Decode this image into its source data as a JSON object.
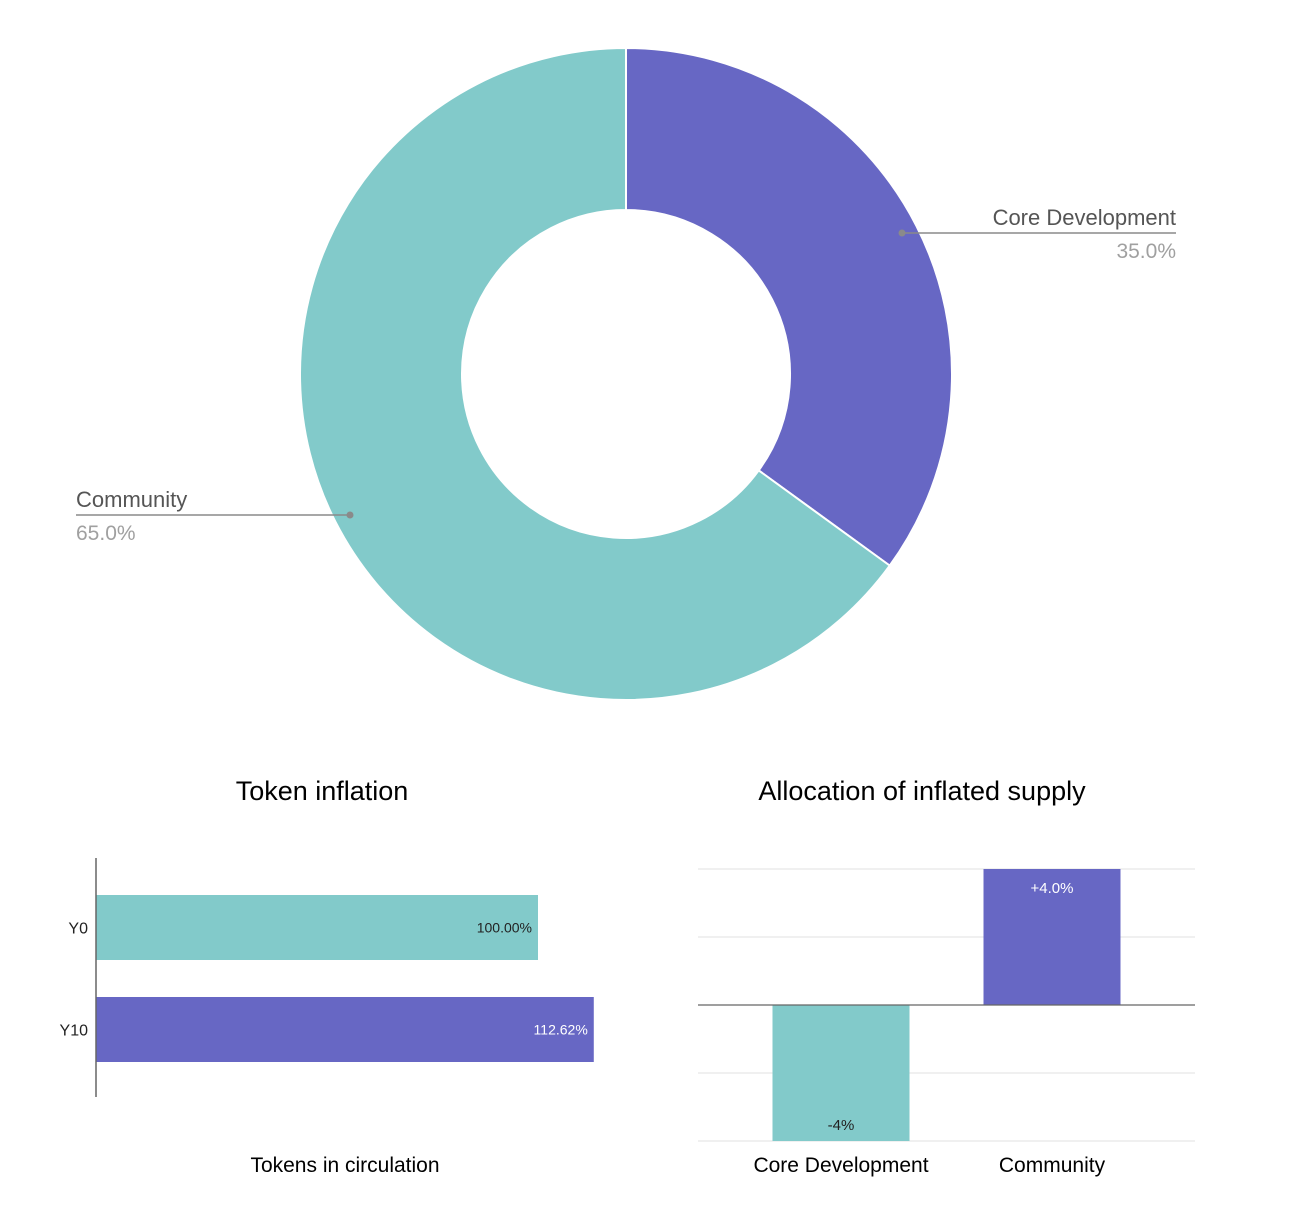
{
  "colors": {
    "teal": "#82caca",
    "purple": "#6767c4",
    "label_dark": "#555555",
    "label_gray": "#a0a0a0",
    "leader": "#8a8a8a",
    "grid": "#e0e0e0",
    "axis": "#666666",
    "title": "#000000",
    "bar_text_dark": "#222222",
    "bar_text_light": "#ffffff"
  },
  "chart_data": [
    {
      "type": "pie",
      "subtype": "donut",
      "title": "",
      "slices": [
        {
          "label": "Core Development",
          "value": 35.0,
          "display": "35.0%",
          "color": "#6767c4"
        },
        {
          "label": "Community",
          "value": 65.0,
          "display": "65.0%",
          "color": "#82caca"
        }
      ]
    },
    {
      "type": "bar",
      "orientation": "horizontal",
      "title": "Token inflation",
      "xlabel": "Tokens in circulation",
      "ylabel": "",
      "categories": [
        "Y0",
        "Y10"
      ],
      "values": [
        100.0,
        112.62
      ],
      "data_labels": [
        "100.00%",
        "112.62%"
      ],
      "colors": [
        "#82caca",
        "#6767c4"
      ],
      "xlim": [
        0,
        120
      ],
      "grid": false
    },
    {
      "type": "bar",
      "orientation": "vertical",
      "title": "Allocation of inflated supply",
      "xlabel": "",
      "ylabel": "",
      "categories": [
        "Core Development",
        "Community"
      ],
      "values": [
        -4.0,
        4.0
      ],
      "data_labels": [
        "-4%",
        "+4.0%"
      ],
      "colors": [
        "#82caca",
        "#6767c4"
      ],
      "ylim": [
        -4,
        4
      ],
      "grid": true
    }
  ]
}
